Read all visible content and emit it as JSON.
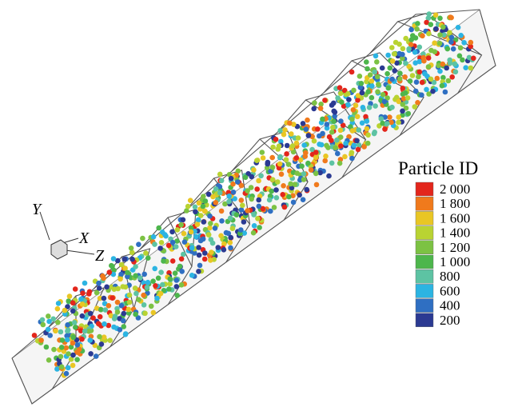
{
  "legend": {
    "title": "Particle ID",
    "items": [
      {
        "label": "2 000",
        "color": "#e3261c"
      },
      {
        "label": "1 800",
        "color": "#f07a1c"
      },
      {
        "label": "1 600",
        "color": "#e9c624"
      },
      {
        "label": "1 400",
        "color": "#b9d332"
      },
      {
        "label": "1 200",
        "color": "#7cc243"
      },
      {
        "label": "1 000",
        "color": "#4db64c"
      },
      {
        "label": "800",
        "color": "#5dc3a3"
      },
      {
        "label": "600",
        "color": "#2cb4e2"
      },
      {
        "label": "400",
        "color": "#2f6fc2"
      },
      {
        "label": "200",
        "color": "#2b3a92"
      }
    ]
  },
  "axes": {
    "y": "Y",
    "x": "X",
    "z": "Z"
  }
}
